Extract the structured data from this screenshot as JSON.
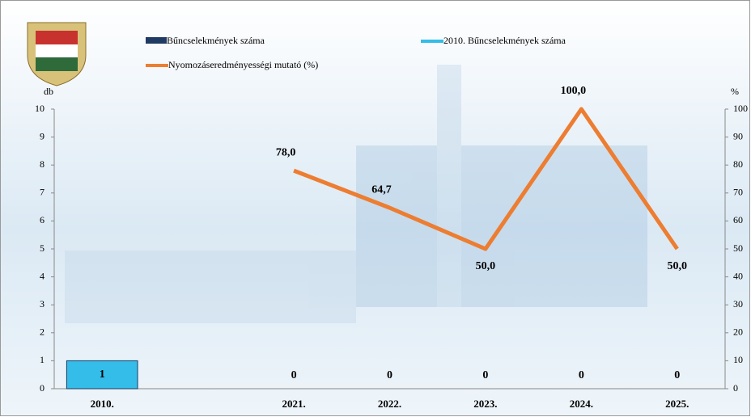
{
  "chart_data": {
    "type": "bar",
    "categories": [
      "2010.",
      null,
      "2021.",
      "2022.",
      "2023.",
      "2024.",
      "2025."
    ],
    "series": [
      {
        "name": "Bűncselekmények száma",
        "color": "#1f3a63",
        "values": [
          null,
          null,
          0,
          0,
          0,
          0,
          0
        ]
      },
      {
        "name": "2010. Bűncselekmények száma",
        "color": "#33bde8",
        "values": [
          1,
          null,
          null,
          null,
          null,
          null,
          null
        ]
      },
      {
        "name": "Nyomozáseredményességi mutató (%)",
        "color": "#ed7d31",
        "type": "line",
        "axis": "y2",
        "values": [
          null,
          null,
          78,
          64.7,
          50,
          100,
          50
        ],
        "value_labels": [
          null,
          null,
          "78,0",
          "64,7",
          "50,0",
          "100,0",
          "50,0"
        ]
      }
    ],
    "y_label": "db",
    "y2_label": "%",
    "ylim": [
      0,
      10
    ],
    "yticks": [
      0,
      1,
      2,
      3,
      4,
      5,
      6,
      7,
      8,
      9,
      10
    ],
    "y2lim": [
      0,
      100
    ],
    "y2ticks": [
      0,
      10,
      20,
      30,
      40,
      50,
      60,
      70,
      80,
      90,
      100
    ]
  }
}
